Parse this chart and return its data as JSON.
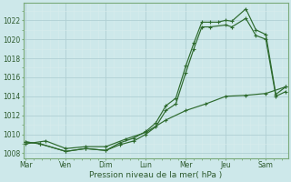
{
  "xlabel_text": "Pression niveau de la mer( hPa )",
  "bg_color": "#cde8ea",
  "grid_major_color": "#b0d0d4",
  "grid_minor_color": "#d8eced",
  "line_color": "#2d6a2d",
  "ylim": [
    1007.5,
    1023.8
  ],
  "yticks": [
    1008,
    1010,
    1012,
    1014,
    1016,
    1018,
    1020,
    1022
  ],
  "xtick_labels": [
    "Mar",
    "Ven",
    "Dim",
    "Lun",
    "Mer",
    "Jeu",
    "Sam"
  ],
  "xtick_positions": [
    0,
    1,
    2,
    3,
    4,
    5,
    6
  ],
  "xlim": [
    -0.05,
    6.55
  ],
  "line1_x": [
    0,
    0.35,
    1.0,
    1.5,
    2.0,
    2.35,
    2.7,
    3.0,
    3.25,
    3.5,
    3.75,
    4.0,
    4.2,
    4.4,
    4.6,
    4.8,
    5.0,
    5.15,
    5.5,
    5.75,
    6.0,
    6.25,
    6.5
  ],
  "line1_y": [
    1009.2,
    1009.0,
    1008.2,
    1008.5,
    1008.3,
    1009.1,
    1009.6,
    1010.3,
    1011.2,
    1013.0,
    1013.8,
    1017.2,
    1019.6,
    1021.8,
    1021.8,
    1021.8,
    1022.0,
    1021.9,
    1023.2,
    1021.0,
    1020.5,
    1014.2,
    1015.0
  ],
  "line2_x": [
    0,
    0.35,
    1.0,
    1.5,
    2.0,
    2.35,
    2.7,
    3.0,
    3.25,
    3.5,
    3.75,
    4.0,
    4.2,
    4.4,
    4.6,
    5.0,
    5.15,
    5.5,
    5.75,
    6.0,
    6.25,
    6.5
  ],
  "line2_y": [
    1009.2,
    1009.0,
    1008.2,
    1008.5,
    1008.3,
    1008.9,
    1009.3,
    1010.0,
    1010.8,
    1012.5,
    1013.2,
    1016.5,
    1019.0,
    1021.3,
    1021.3,
    1021.5,
    1021.3,
    1022.2,
    1020.4,
    1020.0,
    1014.0,
    1014.5
  ],
  "line3_x": [
    0,
    0.5,
    1.0,
    1.5,
    2.0,
    2.5,
    3.0,
    3.5,
    4.0,
    4.5,
    5.0,
    5.5,
    6.0,
    6.5
  ],
  "line3_y": [
    1009.0,
    1009.3,
    1008.5,
    1008.7,
    1008.7,
    1009.5,
    1010.2,
    1011.5,
    1012.5,
    1013.2,
    1014.0,
    1014.1,
    1014.3,
    1015.0
  ]
}
